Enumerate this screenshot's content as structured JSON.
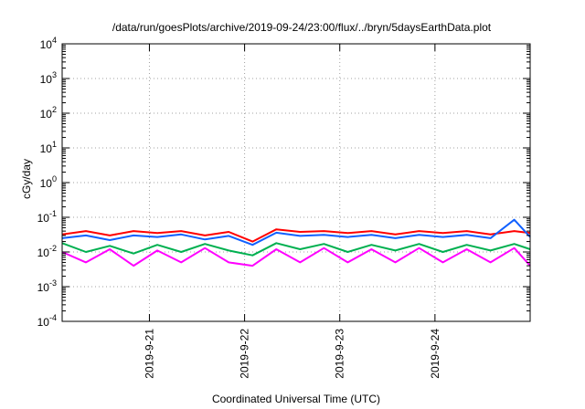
{
  "chart_data": {
    "type": "line",
    "title": "/data/run/goesPlots/archive/2019-09-24/23:00/flux/../bryn/5daysEarthData.plot",
    "xlabel": "Coordinated Universal Time (UTC)",
    "ylabel": "cGy/day",
    "yscale": "log",
    "ylim": [
      0.0001,
      10000
    ],
    "xlim": [
      "2019-09-20 02:00",
      "2019-09-25 00:00"
    ],
    "grid": true,
    "x_ticks": [
      {
        "value": "2019-09-21 00:00",
        "label": "2019-9-21"
      },
      {
        "value": "2019-09-22 00:00",
        "label": "2019-9-22"
      },
      {
        "value": "2019-09-23 00:00",
        "label": "2019-9-23"
      },
      {
        "value": "2019-09-24 00:00",
        "label": "2019-9-24"
      }
    ],
    "y_ticks": [
      {
        "value": 0.0001,
        "base": "10",
        "exp": "-4"
      },
      {
        "value": 0.001,
        "base": "10",
        "exp": "-3"
      },
      {
        "value": 0.01,
        "base": "10",
        "exp": "-2"
      },
      {
        "value": 0.1,
        "base": "10",
        "exp": "-1"
      },
      {
        "value": 1,
        "base": "10",
        "exp": "0"
      },
      {
        "value": 10,
        "base": "10",
        "exp": "1"
      },
      {
        "value": 100,
        "base": "10",
        "exp": "2"
      },
      {
        "value": 1000,
        "base": "10",
        "exp": "3"
      },
      {
        "value": 10000,
        "base": "10",
        "exp": "4"
      }
    ],
    "series": [
      {
        "color": "#ff0000",
        "points": [
          [
            "2019-09-20 02:00",
            0.032
          ],
          [
            "2019-09-20 08:00",
            0.04
          ],
          [
            "2019-09-20 14:00",
            0.03
          ],
          [
            "2019-09-20 20:00",
            0.04
          ],
          [
            "2019-09-21 02:00",
            0.035
          ],
          [
            "2019-09-21 08:00",
            0.04
          ],
          [
            "2019-09-21 14:00",
            0.03
          ],
          [
            "2019-09-21 20:00",
            0.038
          ],
          [
            "2019-09-22 02:00",
            0.02
          ],
          [
            "2019-09-22 08:00",
            0.045
          ],
          [
            "2019-09-22 14:00",
            0.038
          ],
          [
            "2019-09-22 20:00",
            0.04
          ],
          [
            "2019-09-23 02:00",
            0.035
          ],
          [
            "2019-09-23 08:00",
            0.04
          ],
          [
            "2019-09-23 14:00",
            0.032
          ],
          [
            "2019-09-23 20:00",
            0.04
          ],
          [
            "2019-09-24 02:00",
            0.035
          ],
          [
            "2019-09-24 08:00",
            0.04
          ],
          [
            "2019-09-24 14:00",
            0.032
          ],
          [
            "2019-09-24 20:00",
            0.04
          ],
          [
            "2019-09-25 00:00",
            0.035
          ]
        ]
      },
      {
        "color": "#1060ff",
        "points": [
          [
            "2019-09-20 02:00",
            0.025
          ],
          [
            "2019-09-20 08:00",
            0.03
          ],
          [
            "2019-09-20 14:00",
            0.022
          ],
          [
            "2019-09-20 20:00",
            0.03
          ],
          [
            "2019-09-21 02:00",
            0.027
          ],
          [
            "2019-09-21 08:00",
            0.032
          ],
          [
            "2019-09-21 14:00",
            0.023
          ],
          [
            "2019-09-21 20:00",
            0.029
          ],
          [
            "2019-09-22 02:00",
            0.016
          ],
          [
            "2019-09-22 08:00",
            0.036
          ],
          [
            "2019-09-22 14:00",
            0.029
          ],
          [
            "2019-09-22 20:00",
            0.031
          ],
          [
            "2019-09-23 02:00",
            0.027
          ],
          [
            "2019-09-23 08:00",
            0.031
          ],
          [
            "2019-09-23 14:00",
            0.025
          ],
          [
            "2019-09-23 20:00",
            0.031
          ],
          [
            "2019-09-24 02:00",
            0.027
          ],
          [
            "2019-09-24 08:00",
            0.031
          ],
          [
            "2019-09-24 14:00",
            0.025
          ],
          [
            "2019-09-24 20:00",
            0.085
          ],
          [
            "2019-09-25 00:00",
            0.027
          ]
        ]
      },
      {
        "color": "#00b050",
        "points": [
          [
            "2019-09-20 02:00",
            0.018
          ],
          [
            "2019-09-20 08:00",
            0.01
          ],
          [
            "2019-09-20 14:00",
            0.015
          ],
          [
            "2019-09-20 20:00",
            0.009
          ],
          [
            "2019-09-21 02:00",
            0.016
          ],
          [
            "2019-09-21 08:00",
            0.01
          ],
          [
            "2019-09-21 14:00",
            0.017
          ],
          [
            "2019-09-21 20:00",
            0.011
          ],
          [
            "2019-09-22 02:00",
            0.008
          ],
          [
            "2019-09-22 08:00",
            0.018
          ],
          [
            "2019-09-22 14:00",
            0.012
          ],
          [
            "2019-09-22 20:00",
            0.017
          ],
          [
            "2019-09-23 02:00",
            0.01
          ],
          [
            "2019-09-23 08:00",
            0.016
          ],
          [
            "2019-09-23 14:00",
            0.011
          ],
          [
            "2019-09-23 20:00",
            0.017
          ],
          [
            "2019-09-24 02:00",
            0.01
          ],
          [
            "2019-09-24 08:00",
            0.016
          ],
          [
            "2019-09-24 14:00",
            0.011
          ],
          [
            "2019-09-24 20:00",
            0.017
          ],
          [
            "2019-09-25 00:00",
            0.012
          ]
        ]
      },
      {
        "color": "#ff00ff",
        "points": [
          [
            "2019-09-20 02:00",
            0.01
          ],
          [
            "2019-09-20 08:00",
            0.005
          ],
          [
            "2019-09-20 14:00",
            0.012
          ],
          [
            "2019-09-20 20:00",
            0.004
          ],
          [
            "2019-09-21 02:00",
            0.011
          ],
          [
            "2019-09-21 08:00",
            0.005
          ],
          [
            "2019-09-21 14:00",
            0.013
          ],
          [
            "2019-09-21 20:00",
            0.005
          ],
          [
            "2019-09-22 02:00",
            0.004
          ],
          [
            "2019-09-22 08:00",
            0.012
          ],
          [
            "2019-09-22 14:00",
            0.005
          ],
          [
            "2019-09-22 20:00",
            0.013
          ],
          [
            "2019-09-23 02:00",
            0.005
          ],
          [
            "2019-09-23 08:00",
            0.012
          ],
          [
            "2019-09-23 14:00",
            0.005
          ],
          [
            "2019-09-23 20:00",
            0.013
          ],
          [
            "2019-09-24 02:00",
            0.005
          ],
          [
            "2019-09-24 08:00",
            0.012
          ],
          [
            "2019-09-24 14:00",
            0.005
          ],
          [
            "2019-09-24 20:00",
            0.013
          ],
          [
            "2019-09-25 00:00",
            0.004
          ]
        ]
      }
    ]
  }
}
